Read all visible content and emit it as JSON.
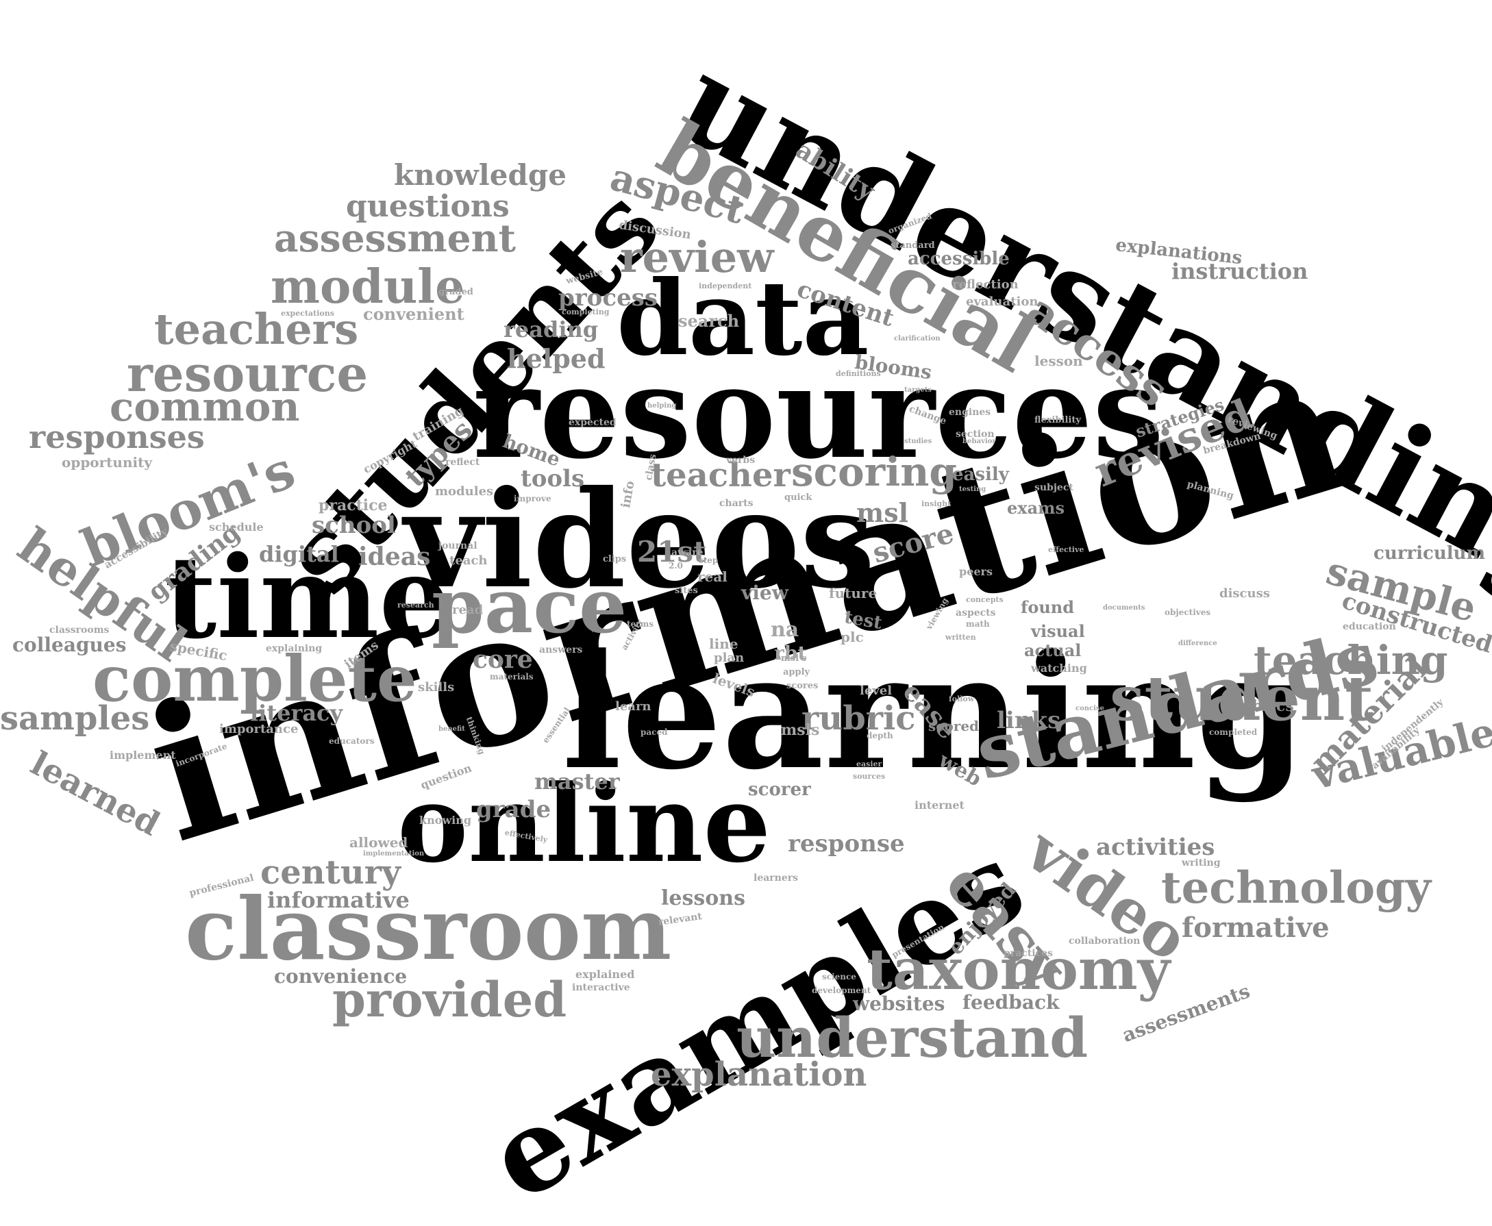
{
  "colors": {
    "primary": "#000000",
    "secondary": "#8a8a8a",
    "tertiary": "#a6a6a6",
    "background": "#ffffff"
  },
  "words": [
    {
      "id": "understanding",
      "text": "understanding",
      "tone": "dark"
    },
    {
      "id": "information",
      "text": "information",
      "tone": "dark"
    },
    {
      "id": "learning",
      "text": "learning",
      "tone": "dark"
    },
    {
      "id": "videos",
      "text": "videos",
      "tone": "dark"
    },
    {
      "id": "resources",
      "text": "resources",
      "tone": "dark"
    },
    {
      "id": "students",
      "text": "students",
      "tone": "dark"
    },
    {
      "id": "data",
      "text": "data",
      "tone": "dark"
    },
    {
      "id": "time",
      "text": "time",
      "tone": "dark"
    },
    {
      "id": "online",
      "text": "online",
      "tone": "dark"
    },
    {
      "id": "examples",
      "text": "examples",
      "tone": "dark"
    },
    {
      "id": "classroom",
      "text": "classroom",
      "tone": "gray"
    },
    {
      "id": "beneficial",
      "text": "beneficial",
      "tone": "gray"
    },
    {
      "id": "standards",
      "text": "standards",
      "tone": "gray"
    },
    {
      "id": "pace",
      "text": "pace",
      "tone": "gray"
    },
    {
      "id": "complete",
      "text": "complete",
      "tone": "gray"
    },
    {
      "id": "student",
      "text": "student",
      "tone": "gray"
    },
    {
      "id": "taxonomy",
      "text": "taxonomy",
      "tone": "gray"
    },
    {
      "id": "understand",
      "text": "understand",
      "tone": "gray"
    },
    {
      "id": "provided",
      "text": "provided",
      "tone": "gray"
    },
    {
      "id": "video",
      "text": "video",
      "tone": "gray"
    },
    {
      "id": "easy",
      "text": "easy",
      "tone": "gray"
    },
    {
      "id": "bloom's",
      "text": "bloom's",
      "tone": "gray"
    },
    {
      "id": "resource",
      "text": "resource",
      "tone": "gray"
    },
    {
      "id": "module",
      "text": "module",
      "tone": "gray"
    },
    {
      "id": "teachers",
      "text": "teachers",
      "tone": "gray"
    },
    {
      "id": "assessment",
      "text": "assessment",
      "tone": "gray"
    },
    {
      "id": "common",
      "text": "common",
      "tone": "gray"
    },
    {
      "id": "responses",
      "text": "responses",
      "tone": "gray"
    },
    {
      "id": "helpful",
      "text": "helpful",
      "tone": "gray"
    },
    {
      "id": "review",
      "text": "review",
      "tone": "gray"
    },
    {
      "id": "access",
      "text": "access",
      "tone": "gray"
    },
    {
      "id": "aspect",
      "text": "aspect",
      "tone": "gray"
    },
    {
      "id": "scoring",
      "text": "scoring",
      "tone": "gray"
    },
    {
      "id": "teacher",
      "text": "teacher",
      "tone": "gray"
    },
    {
      "id": "revised",
      "text": "revised",
      "tone": "gray"
    },
    {
      "id": "sample",
      "text": "sample",
      "tone": "gray"
    },
    {
      "id": "teaching",
      "text": "teaching",
      "tone": "gray"
    },
    {
      "id": "technology",
      "text": "technology",
      "tone": "gray"
    },
    {
      "id": "valuable",
      "text": "valuable",
      "tone": "gray"
    },
    {
      "id": "century",
      "text": "century",
      "tone": "gray"
    },
    {
      "id": "rubric",
      "text": "rubric",
      "tone": "gray"
    },
    {
      "id": "knowledge",
      "text": "knowledge",
      "tone": "gray"
    },
    {
      "id": "questions",
      "text": "questions",
      "tone": "gray"
    },
    {
      "id": "samples",
      "text": "samples",
      "tone": "gray"
    },
    {
      "id": "learned",
      "text": "learned",
      "tone": "gray"
    },
    {
      "id": "explanation",
      "text": "explanation",
      "tone": "gray"
    },
    {
      "id": "material",
      "text": "material",
      "tone": "gray"
    },
    {
      "id": "formative",
      "text": "formative",
      "tone": "gray"
    },
    {
      "id": "constructed",
      "text": "constructed",
      "tone": "gray"
    },
    {
      "id": "21st",
      "text": "21st",
      "tone": "gray"
    },
    {
      "id": "score",
      "text": "score",
      "tone": "gray"
    },
    {
      "id": "ease",
      "text": "ease",
      "tone": "gray"
    },
    {
      "id": "ability",
      "text": "ability",
      "tone": "gray"
    },
    {
      "id": "content",
      "text": "content",
      "tone": "gray"
    },
    {
      "id": "process",
      "text": "process",
      "tone": "gray"
    },
    {
      "id": "reading",
      "text": "reading",
      "tone": "gray"
    },
    {
      "id": "helped",
      "text": "helped",
      "tone": "gray"
    },
    {
      "id": "types",
      "text": "types",
      "tone": "gray"
    },
    {
      "id": "grading",
      "text": "grading",
      "tone": "gray"
    },
    {
      "id": "school",
      "text": "school",
      "tone": "gray"
    },
    {
      "id": "ideas",
      "text": "ideas",
      "tone": "gray"
    },
    {
      "id": "digital",
      "text": "digital",
      "tone": "gray"
    },
    {
      "id": "core",
      "text": "core",
      "tone": "gray"
    },
    {
      "id": "literacy",
      "text": "literacy",
      "tone": "gray"
    },
    {
      "id": "master",
      "text": "master",
      "tone": "gray"
    },
    {
      "id": "grade",
      "text": "grade",
      "tone": "gray"
    },
    {
      "id": "response",
      "text": "response",
      "tone": "gray"
    },
    {
      "id": "activities",
      "text": "activities",
      "tone": "gray"
    },
    {
      "id": "informative",
      "text": "informative",
      "tone": "gray"
    },
    {
      "id": "convenience",
      "text": "convenience",
      "tone": "gray"
    },
    {
      "id": "lessons",
      "text": "lessons",
      "tone": "gray"
    },
    {
      "id": "enjoyed",
      "text": "enjoyed",
      "tone": "gray"
    },
    {
      "id": "websites",
      "text": "websites",
      "tone": "gray"
    },
    {
      "id": "feedback",
      "text": "feedback",
      "tone": "gray"
    },
    {
      "id": "assessments",
      "text": "assessments",
      "tone": "gray"
    },
    {
      "id": "msl",
      "text": "msl",
      "tone": "gray"
    },
    {
      "id": "links",
      "text": "links",
      "tone": "gray"
    },
    {
      "id": "tools",
      "text": "tools",
      "tone": "gray"
    },
    {
      "id": "home",
      "text": "home",
      "tone": "gray"
    },
    {
      "id": "colleagues",
      "text": "colleagues",
      "tone": "gray"
    },
    {
      "id": "explanations",
      "text": "explanations",
      "tone": "gray"
    },
    {
      "id": "instruction",
      "text": "instruction",
      "tone": "gray"
    },
    {
      "id": "curriculum",
      "text": "curriculum",
      "tone": "gray"
    },
    {
      "id": "accessible",
      "text": "accessible",
      "tone": "gray"
    },
    {
      "id": "blooms",
      "text": "blooms",
      "tone": "gray"
    },
    {
      "id": "strategies",
      "text": "strategies",
      "tone": "gray"
    },
    {
      "id": "easily",
      "text": "easily",
      "tone": "gray"
    },
    {
      "id": "exams",
      "text": "exams",
      "tone": "gray"
    },
    {
      "id": "found",
      "text": "found",
      "tone": "gray"
    },
    {
      "id": "visual",
      "text": "visual",
      "tone": "gray"
    },
    {
      "id": "actual",
      "text": "actual",
      "tone": "gray"
    },
    {
      "id": "rubrics",
      "text": "rubrics",
      "tone": "gray"
    },
    {
      "id": "web",
      "text": "web",
      "tone": "gray"
    },
    {
      "id": "scorer",
      "text": "scorer",
      "tone": "gray"
    },
    {
      "id": "scored",
      "text": "scored",
      "tone": "gray"
    },
    {
      "id": "view",
      "text": "view",
      "tone": "gray"
    },
    {
      "id": "test",
      "text": "test",
      "tone": "gray"
    },
    {
      "id": "opportunity",
      "text": "opportunity",
      "tone": "light"
    },
    {
      "id": "accessibility",
      "text": "accessibility",
      "tone": "light"
    },
    {
      "id": "classrooms",
      "text": "classrooms",
      "tone": "light"
    },
    {
      "id": "specific",
      "text": "specific",
      "tone": "light"
    },
    {
      "id": "importance",
      "text": "importance",
      "tone": "light"
    },
    {
      "id": "implement",
      "text": "implement",
      "tone": "light"
    },
    {
      "id": "professional",
      "text": "professional",
      "tone": "light"
    },
    {
      "id": "allowed",
      "text": "allowed",
      "tone": "light"
    },
    {
      "id": "search",
      "text": "search",
      "tone": "light"
    },
    {
      "id": "convenient",
      "text": "convenient",
      "tone": "light"
    },
    {
      "id": "discussion",
      "text": "discussion",
      "tone": "light"
    },
    {
      "id": "lesson",
      "text": "lesson",
      "tone": "light"
    },
    {
      "id": "reflection",
      "text": "reflection",
      "tone": "light"
    },
    {
      "id": "evaluation",
      "text": "evaluation",
      "tone": "light"
    },
    {
      "id": "discuss",
      "text": "discuss",
      "tone": "light"
    },
    {
      "id": "education",
      "text": "education",
      "tone": "light"
    },
    {
      "id": "independently",
      "text": "independently",
      "tone": "light"
    },
    {
      "id": "availability",
      "text": "availability",
      "tone": "light"
    },
    {
      "id": "writing",
      "text": "writing",
      "tone": "light"
    },
    {
      "id": "collaboration",
      "text": "collaboration",
      "tone": "light"
    },
    {
      "id": "interactive",
      "text": "interactive",
      "tone": "light"
    },
    {
      "id": "explained",
      "text": "explained",
      "tone": "light"
    },
    {
      "id": "development",
      "text": "development",
      "tone": "light"
    },
    {
      "id": "practices",
      "text": "practices",
      "tone": "light"
    },
    {
      "id": "practice",
      "text": "practice",
      "tone": "light"
    },
    {
      "id": "schedule",
      "text": "schedule",
      "tone": "light"
    },
    {
      "id": "training",
      "text": "training",
      "tone": "light"
    },
    {
      "id": "copyright",
      "text": "copyright",
      "tone": "light"
    },
    {
      "id": "reflect",
      "text": "reflect",
      "tone": "light"
    },
    {
      "id": "modules",
      "text": "modules",
      "tone": "light"
    },
    {
      "id": "journal",
      "text": "journal",
      "tone": "light"
    },
    {
      "id": "teach",
      "text": "teach",
      "tone": "light"
    },
    {
      "id": "aware",
      "text": "aware",
      "tone": "light"
    },
    {
      "id": "charts",
      "text": "charts",
      "tone": "light"
    },
    {
      "id": "sites",
      "text": "sites",
      "tone": "light"
    },
    {
      "id": "quick",
      "text": "quick",
      "tone": "light"
    },
    {
      "id": "flexibility",
      "text": "flexibility",
      "tone": "light"
    },
    {
      "id": "engines",
      "text": "engines",
      "tone": "light"
    },
    {
      "id": "organized",
      "text": "organized",
      "tone": "light"
    },
    {
      "id": "standard",
      "text": "standard",
      "tone": "light"
    },
    {
      "id": "website",
      "text": "website",
      "tone": "light"
    },
    {
      "id": "graded",
      "text": "graded",
      "tone": "light"
    },
    {
      "id": "expectations",
      "text": "expectations",
      "tone": "light"
    },
    {
      "id": "breakdown",
      "text": "breakdown",
      "tone": "light"
    },
    {
      "id": "reviewing",
      "text": "reviewing",
      "tone": "light"
    },
    {
      "id": "planning",
      "text": "planning",
      "tone": "light"
    },
    {
      "id": "future",
      "text": "future",
      "tone": "light"
    },
    {
      "id": "plc",
      "text": "plc",
      "tone": "light"
    },
    {
      "id": "level",
      "text": "level",
      "tone": "light"
    },
    {
      "id": "levels",
      "text": "levels",
      "tone": "light"
    },
    {
      "id": "line",
      "text": "line",
      "tone": "light"
    },
    {
      "id": "plan",
      "text": "plan",
      "tone": "light"
    },
    {
      "id": "rbt",
      "text": "rbt",
      "tone": "light"
    },
    {
      "id": "na",
      "text": "na",
      "tone": "light"
    },
    {
      "id": "msls",
      "text": "msls",
      "tone": "light"
    },
    {
      "id": "internet",
      "text": "internet",
      "tone": "light"
    },
    {
      "id": "learners",
      "text": "learners",
      "tone": "light"
    },
    {
      "id": "relevant",
      "text": "relevant",
      "tone": "light"
    },
    {
      "id": "knowing",
      "text": "knowing",
      "tone": "light"
    },
    {
      "id": "question",
      "text": "question",
      "tone": "light"
    },
    {
      "id": "items",
      "text": "items",
      "tone": "light"
    },
    {
      "id": "skills",
      "text": "skills",
      "tone": "light"
    },
    {
      "id": "explaining",
      "text": "explaining",
      "tone": "light"
    },
    {
      "id": "read",
      "text": "read",
      "tone": "light"
    },
    {
      "id": "answers",
      "text": "answers",
      "tone": "light"
    },
    {
      "id": "learn",
      "text": "learn",
      "tone": "light"
    },
    {
      "id": "materials",
      "text": "materials",
      "tone": "light"
    },
    {
      "id": "objectives",
      "text": "objectives",
      "tone": "light"
    },
    {
      "id": "completed",
      "text": "completed",
      "tone": "light"
    },
    {
      "id": "science",
      "text": "science",
      "tone": "light"
    },
    {
      "id": "presentation",
      "text": "presentation",
      "tone": "light"
    },
    {
      "id": "info",
      "text": "info",
      "tone": "light"
    },
    {
      "id": "class",
      "text": "class",
      "tone": "light"
    },
    {
      "id": "real",
      "text": "real",
      "tone": "light"
    },
    {
      "id": "peers",
      "text": "peers",
      "tone": "light"
    },
    {
      "id": "aspects",
      "text": "aspects",
      "tone": "light"
    },
    {
      "id": "watching",
      "text": "watching",
      "tone": "light"
    },
    {
      "id": "section",
      "text": "section",
      "tone": "light"
    },
    {
      "id": "subject",
      "text": "subject",
      "tone": "light"
    },
    {
      "id": "independent",
      "text": "independent",
      "tone": "light"
    },
    {
      "id": "completing",
      "text": "completing",
      "tone": "light"
    },
    {
      "id": "definitions",
      "text": "definitions",
      "tone": "light"
    },
    {
      "id": "change",
      "text": "change",
      "tone": "light"
    },
    {
      "id": "expected",
      "text": "expected",
      "tone": "light"
    },
    {
      "id": "improve",
      "text": "improve",
      "tone": "light"
    },
    {
      "id": "verbs",
      "text": "verbs",
      "tone": "light"
    },
    {
      "id": "effective",
      "text": "effective",
      "tone": "light"
    },
    {
      "id": "concepts",
      "text": "concepts",
      "tone": "light"
    },
    {
      "id": "math",
      "text": "math",
      "tone": "light"
    },
    {
      "id": "thinking",
      "text": "thinking",
      "tone": "light"
    },
    {
      "id": "essential",
      "text": "essential",
      "tone": "light"
    },
    {
      "id": "paced",
      "text": "paced",
      "tone": "light"
    },
    {
      "id": "apply",
      "text": "apply",
      "tone": "light"
    },
    {
      "id": "scores",
      "text": "scores",
      "tone": "light"
    },
    {
      "id": "msl's",
      "text": "msl's",
      "tone": "light"
    },
    {
      "id": "incorporate",
      "text": "incorporate",
      "tone": "light"
    },
    {
      "id": "educators",
      "text": "educators",
      "tone": "light"
    },
    {
      "id": "research",
      "text": "research",
      "tone": "light"
    },
    {
      "id": "implementation",
      "text": "implementation",
      "tone": "light"
    },
    {
      "id": "clips",
      "text": "clips",
      "tone": "light"
    },
    {
      "id": "effectively",
      "text": "effectively",
      "tone": "light"
    },
    {
      "id": "benefit",
      "text": "benefit",
      "tone": "light"
    },
    {
      "id": "activity",
      "text": "activity",
      "tone": "light"
    },
    {
      "id": "terms",
      "text": "terms",
      "tone": "light"
    },
    {
      "id": "follow",
      "text": "follow",
      "tone": "light"
    },
    {
      "id": "viewing",
      "text": "viewing",
      "tone": "light"
    },
    {
      "id": "written",
      "text": "written",
      "tone": "light"
    },
    {
      "id": "depth",
      "text": "depth",
      "tone": "light"
    },
    {
      "id": "easier",
      "text": "easier",
      "tone": "light"
    },
    {
      "id": "sources",
      "text": "sources",
      "tone": "light"
    },
    {
      "id": "concise",
      "text": "concise",
      "tone": "light"
    },
    {
      "id": "difference",
      "text": "difference",
      "tone": "light"
    },
    {
      "id": "documents",
      "text": "documents",
      "tone": "light"
    },
    {
      "id": "insight",
      "text": "insight",
      "tone": "light"
    },
    {
      "id": "testing",
      "text": "testing",
      "tone": "light"
    },
    {
      "id": "behavior",
      "text": "behavior",
      "tone": "light"
    },
    {
      "id": "studies",
      "text": "studies",
      "tone": "light"
    },
    {
      "id": "targets",
      "text": "targets",
      "tone": "light"
    },
    {
      "id": "clarification",
      "text": "clarification",
      "tone": "light"
    },
    {
      "id": "helping",
      "text": "helping",
      "tone": "light"
    },
    {
      "id": "step",
      "text": "step",
      "tone": "light"
    },
    {
      "id": "2.0",
      "text": "2.0",
      "tone": "light"
    }
  ]
}
